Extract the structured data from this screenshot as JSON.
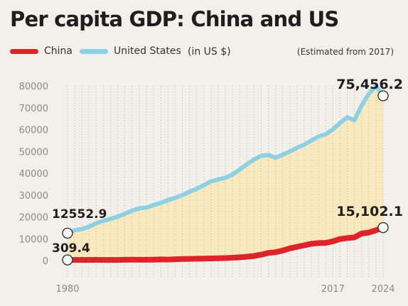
{
  "chart_data": {
    "type": "area",
    "title": "Per capita GDP: China and US",
    "unit_note": "(in US $)",
    "note": "(Estimated from 2017)",
    "xlabel": "",
    "ylabel": "",
    "xlim": [
      1980,
      2024
    ],
    "ylim": [
      0,
      80000
    ],
    "y_ticks": [
      "0",
      "10000",
      "20000",
      "30000",
      "40000",
      "50000",
      "60000",
      "70000",
      "80000"
    ],
    "x_tick_labels": [
      "1980",
      "2017",
      "2024"
    ],
    "grid": "vertical dotted",
    "legend_position": "top-left",
    "series": [
      {
        "name": "China",
        "color": "#e0222a",
        "x": [
          1980,
          1981,
          1982,
          1983,
          1984,
          1985,
          1986,
          1987,
          1988,
          1989,
          1990,
          1991,
          1992,
          1993,
          1994,
          1995,
          1996,
          1997,
          1998,
          1999,
          2000,
          2001,
          2002,
          2003,
          2004,
          2005,
          2006,
          2007,
          2008,
          2009,
          2010,
          2011,
          2012,
          2013,
          2014,
          2015,
          2016,
          2017,
          2018,
          2019,
          2020,
          2021,
          2022,
          2023,
          2024
        ],
        "values": [
          309.4,
          300,
          290,
          300,
          310,
          300,
          290,
          300,
          370,
          400,
          350,
          360,
          420,
          520,
          470,
          610,
          710,
          780,
          830,
          870,
          960,
          1050,
          1150,
          1290,
          1510,
          1750,
          2100,
          2700,
          3500,
          3800,
          4600,
          5600,
          6300,
          7000,
          7700,
          8000,
          8100,
          8800,
          9900,
          10300,
          10600,
          12400,
          12800,
          13900,
          15102.1
        ],
        "start_label": "309.4",
        "end_label": "15,102.1"
      },
      {
        "name": "United States",
        "color": "#8dd1e3",
        "x": [
          1980,
          1981,
          1982,
          1983,
          1984,
          1985,
          1986,
          1987,
          1988,
          1989,
          1990,
          1991,
          1992,
          1993,
          1994,
          1995,
          1996,
          1997,
          1998,
          1999,
          2000,
          2001,
          2002,
          2003,
          2004,
          2005,
          2006,
          2007,
          2008,
          2009,
          2010,
          2011,
          2012,
          2013,
          2014,
          2015,
          2016,
          2017,
          2018,
          2019,
          2020,
          2021,
          2022,
          2023,
          2024
        ],
        "values": [
          12552.9,
          13900,
          14400,
          15500,
          17100,
          18200,
          19100,
          20100,
          21400,
          22900,
          23900,
          24300,
          25400,
          26400,
          27700,
          28700,
          30000,
          31500,
          32800,
          34500,
          36300,
          37100,
          37900,
          39400,
          41700,
          44100,
          46300,
          48000,
          48400,
          47100,
          48500,
          50000,
          51700,
          53100,
          55000,
          56800,
          57900,
          60100,
          63100,
          65600,
          64300,
          71000,
          76300,
          80000,
          75456.2
        ],
        "start_label": "12552.9",
        "end_label": "75,456.2"
      }
    ]
  },
  "colors": {
    "background": "#f2f0eb",
    "area_fill": "#fbe9be",
    "china": "#e0222a",
    "us": "#8dd1e3"
  }
}
